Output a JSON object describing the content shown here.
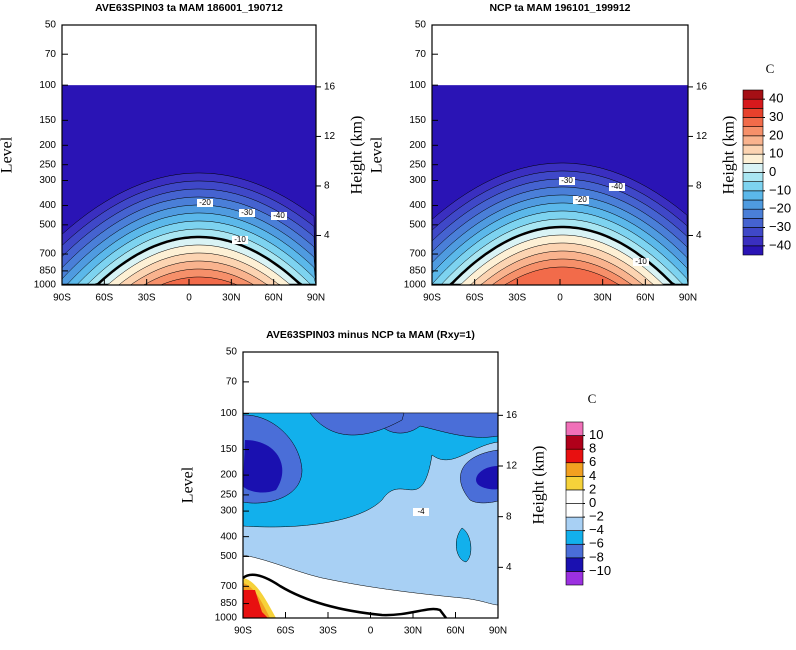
{
  "chart_data": [
    {
      "type": "contour",
      "title": "AVE63SPIN03 ta MAM 186001_190712",
      "ylabel": "Level",
      "y2label": "Height (km)",
      "xlim": [
        -90,
        90
      ],
      "xticks": [
        {
          "value": -90,
          "label": "90S"
        },
        {
          "value": -60,
          "label": "60S"
        },
        {
          "value": -30,
          "label": "30S"
        },
        0,
        {
          "value": 30,
          "label": "30N"
        },
        {
          "value": 60,
          "label": "60N"
        },
        {
          "value": 90,
          "label": "90N"
        }
      ],
      "ylim": [
        1000,
        50
      ],
      "ylog": true,
      "yticks": [
        50,
        70,
        100,
        150,
        200,
        250,
        300,
        400,
        500,
        700,
        850,
        1000
      ],
      "y2lim": [
        0,
        21
      ],
      "y2ticks": [
        4,
        8,
        12,
        16
      ],
      "annotations": [
        "-20",
        "-30",
        "-40",
        "-10"
      ]
    },
    {
      "type": "contour",
      "title": "NCP ta MAM 196101_199912",
      "ylabel": "Level",
      "y2label": "Height (km)",
      "xlim": [
        -90,
        90
      ],
      "xticks": [
        {
          "value": -90,
          "label": "90S"
        },
        {
          "value": -60,
          "label": "60S"
        },
        {
          "value": -30,
          "label": "30S"
        },
        0,
        {
          "value": 30,
          "label": "30N"
        },
        {
          "value": 60,
          "label": "60N"
        },
        {
          "value": 90,
          "label": "90N"
        }
      ],
      "ylim": [
        1000,
        50
      ],
      "ylog": true,
      "yticks": [
        50,
        70,
        100,
        150,
        200,
        250,
        300,
        400,
        500,
        700,
        850,
        1000
      ],
      "y2lim": [
        0,
        21
      ],
      "y2ticks": [
        4,
        8,
        12,
        16
      ],
      "annotations": [
        "-30",
        "-40",
        "-20",
        "-10"
      ],
      "colorbar": {
        "title": "C",
        "lim": [
          -45,
          45
        ],
        "ticks": [
          {
            "value": -40,
            "label": "−40"
          },
          {
            "value": -30,
            "label": "−30"
          },
          {
            "value": -20,
            "label": "−20"
          },
          {
            "value": -10,
            "label": "−10"
          },
          0,
          10,
          20,
          30,
          40
        ],
        "colors": [
          "#2a14b5",
          "#3a2fc0",
          "#3f48c8",
          "#4563d0",
          "#4a7fd8",
          "#4f9be0",
          "#5bb8ea",
          "#7dd3f0",
          "#a9e6f2",
          "#d9f3f5",
          "#fdf0d5",
          "#fcd4b2",
          "#f9b38e",
          "#f6906a",
          "#f26b4a",
          "#e8412c",
          "#d7191c",
          "#a50f15"
        ]
      }
    },
    {
      "type": "contour",
      "title": "AVE63SPIN03 minus NCP ta MAM (Rxy=1)",
      "ylabel": "Level",
      "y2label": "Height (km)",
      "xlim": [
        -90,
        90
      ],
      "xticks": [
        {
          "value": -90,
          "label": "90S"
        },
        {
          "value": -60,
          "label": "60S"
        },
        {
          "value": -30,
          "label": "30S"
        },
        0,
        {
          "value": 30,
          "label": "30N"
        },
        {
          "value": 60,
          "label": "60N"
        },
        {
          "value": 90,
          "label": "90N"
        }
      ],
      "ylim": [
        1000,
        50
      ],
      "ylog": true,
      "yticks": [
        50,
        70,
        100,
        150,
        200,
        250,
        300,
        400,
        500,
        700,
        850,
        1000
      ],
      "y2lim": [
        0,
        21
      ],
      "y2ticks": [
        4,
        8,
        12,
        16
      ],
      "annotations": [
        "-4"
      ],
      "colorbar": {
        "title": "C",
        "lim": [
          -12,
          12
        ],
        "ticks": [
          {
            "value": -10,
            "label": "−10"
          },
          {
            "value": -8,
            "label": "−8"
          },
          {
            "value": -6,
            "label": "−6"
          },
          {
            "value": -4,
            "label": "−4"
          },
          {
            "value": -2,
            "label": "−2"
          },
          0,
          2,
          4,
          6,
          8,
          10
        ],
        "colors": [
          "#9b30e0",
          "#1a10b0",
          "#4a6ed8",
          "#12b0ec",
          "#a8d0f4",
          "#ffffff",
          "#ffffff",
          "#f6d23a",
          "#f2a020",
          "#e81010",
          "#b0001a",
          "#f070b8"
        ]
      }
    }
  ]
}
